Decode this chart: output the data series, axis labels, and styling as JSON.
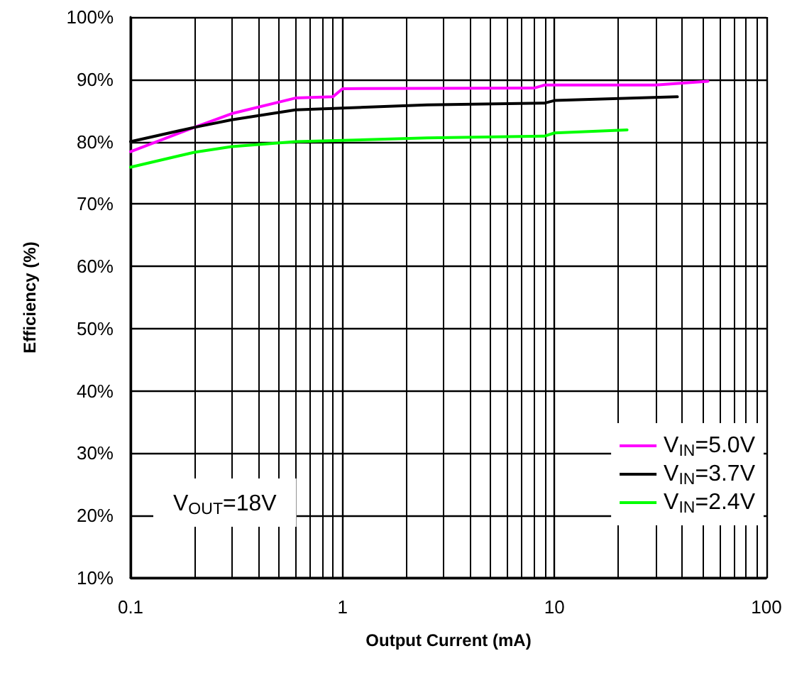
{
  "chart_data": {
    "type": "line",
    "xlabel": "Output Current (mA)",
    "ylabel": "Efficiency (%)",
    "log": "x",
    "xlim": [
      0.1,
      100
    ],
    "xticks": [
      0.1,
      1,
      10,
      100
    ],
    "ylim": [
      10,
      100
    ],
    "yticks": [
      {
        "value": 10,
        "label": "10%"
      },
      {
        "value": 20,
        "label": "20%"
      },
      {
        "value": 30,
        "label": "30%"
      },
      {
        "value": 40,
        "label": "40%"
      },
      {
        "value": 50,
        "label": "50%"
      },
      {
        "value": 60,
        "label": "60%"
      },
      {
        "value": 70,
        "label": "70%"
      },
      {
        "value": 80,
        "label": "80%"
      },
      {
        "value": 90,
        "label": "90%"
      },
      {
        "value": 100,
        "label": "100%"
      }
    ],
    "grid": true,
    "legend": "bottom right",
    "marker": "none",
    "line_style": "solid",
    "annotations": [
      "V$_{OUT}$=18V"
    ],
    "series": [
      {
        "name": "V$_{IN}$=5.0V",
        "color": "#ff00ff",
        "x": [
          0.1,
          0.2,
          0.3,
          0.6,
          0.9,
          1,
          8,
          9,
          30,
          53
        ],
        "values": [
          78.4,
          82.3,
          84.5,
          87,
          87.2,
          88.5,
          88.6,
          89.1,
          89.1,
          89.7
        ]
      },
      {
        "name": "V$_{IN}$=3.7V",
        "color": "#000000",
        "x": [
          0.1,
          0.2,
          0.3,
          0.6,
          1,
          2.5,
          9,
          10,
          38
        ],
        "values": [
          80,
          82.3,
          83.5,
          85.1,
          85.4,
          85.9,
          86.2,
          86.6,
          87.2
        ]
      },
      {
        "name": "V$_{IN}$=2.4V",
        "color": "#00ff00",
        "x": [
          0.1,
          0.2,
          0.3,
          0.6,
          1,
          2.5,
          9,
          10,
          22
        ],
        "values": [
          75.9,
          78.3,
          79.2,
          80,
          80.2,
          80.6,
          80.9,
          81.4,
          81.9
        ]
      }
    ]
  }
}
